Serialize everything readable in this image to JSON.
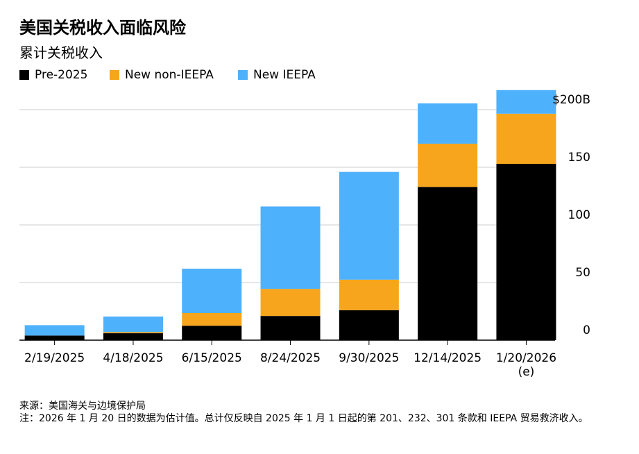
{
  "chart_data": {
    "type": "bar",
    "stacked": true,
    "title": "美国关税收入面临风险",
    "subtitle": "累计关税收入",
    "categories": [
      "2/19/2025",
      "4/18/2025",
      "6/15/2025",
      "8/24/2025",
      "9/30/2025",
      "12/14/2025",
      "1/20/2026 (e)"
    ],
    "series": [
      {
        "name": "Pre-2025",
        "color": "#000000",
        "values": [
          4,
          6,
          12.5,
          21,
          26,
          133,
          153
        ]
      },
      {
        "name": "New non-IEEPA",
        "color": "#f7a51c",
        "values": [
          0,
          1,
          11,
          23.5,
          26.5,
          37.5,
          43.5
        ]
      },
      {
        "name": "New IEEPA",
        "color": "#4eb1fb",
        "values": [
          9,
          13.5,
          38.5,
          71.5,
          93.5,
          35,
          20.5
        ]
      }
    ],
    "ylim": [
      0,
      220
    ],
    "yticks": [
      0,
      50,
      100,
      150,
      {
        "value": 200,
        "label": "$200B"
      }
    ],
    "grid": true,
    "legend": "top-left",
    "source": "来源：美国海关与边境保护局",
    "note": "注：2026 年 1 月 20 日的数据为估计值。总计仅反映自 2025 年 1 月 1 日起的第 201、232、301 条款和 IEEPA 贸易救济收入。"
  }
}
